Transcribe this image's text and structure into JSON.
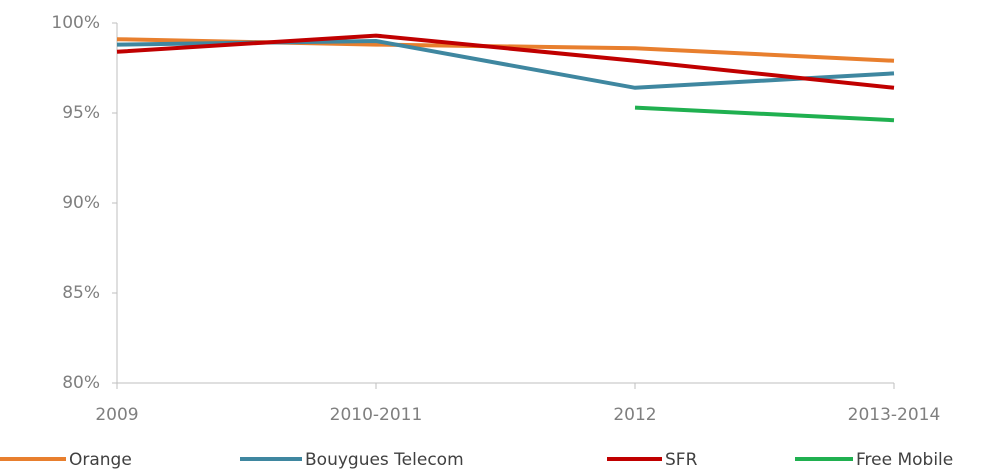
{
  "chart_data": {
    "type": "line",
    "categories": [
      "2009",
      "2010-2011",
      "2012",
      "2013-2014"
    ],
    "series": [
      {
        "name": "Orange",
        "color": "#e87f2e",
        "values": [
          99.1,
          98.8,
          98.6,
          97.9
        ]
      },
      {
        "name": "Bouygues Telecom",
        "color": "#3f87a0",
        "values": [
          98.8,
          99.0,
          96.4,
          97.2
        ]
      },
      {
        "name": "SFR",
        "color": "#c00000",
        "values": [
          98.4,
          99.3,
          97.9,
          96.4
        ]
      },
      {
        "name": "Free Mobile",
        "color": "#20b050",
        "values": [
          null,
          null,
          95.3,
          94.6
        ]
      }
    ],
    "ylim": [
      80,
      100
    ],
    "yticks": [
      {
        "value": 80,
        "label": "80%"
      },
      {
        "value": 85,
        "label": "85%"
      },
      {
        "value": 90,
        "label": "90%"
      },
      {
        "value": 95,
        "label": "95%"
      },
      {
        "value": 100,
        "label": "100%"
      }
    ],
    "grid": false,
    "legend": "bottom"
  }
}
